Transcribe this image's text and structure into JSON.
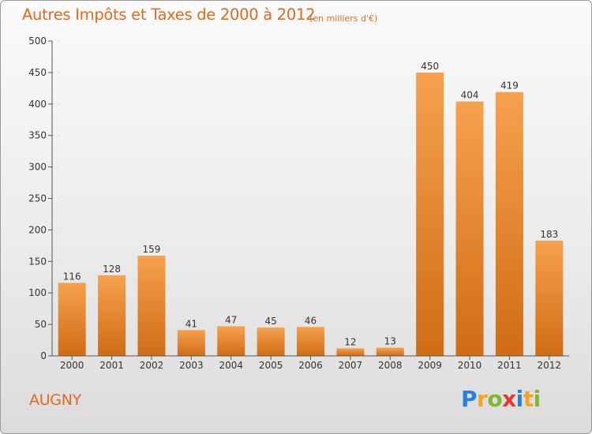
{
  "header": {
    "title": "Autres Impôts et Taxes de 2000 à 2012",
    "unit": "(en milliers d'€)"
  },
  "footer": {
    "location": "AUGNY",
    "logo_text": "Proxiti"
  },
  "colors": {
    "accent": "#e06a1e",
    "bar_top": "#f6a14e",
    "bar_bottom": "#d06c16",
    "axis": "#555555",
    "grid": "#dddddd"
  },
  "chart_data": {
    "type": "bar",
    "categories": [
      "2000",
      "2001",
      "2002",
      "2003",
      "2004",
      "2005",
      "2006",
      "2007",
      "2008",
      "2009",
      "2010",
      "2011",
      "2012"
    ],
    "values": [
      116,
      128,
      159,
      41,
      47,
      45,
      46,
      12,
      13,
      450,
      404,
      419,
      183
    ],
    "data_labels": [
      "116",
      "128",
      "159",
      "41",
      "47",
      "45",
      "46",
      "12",
      "13",
      "450",
      "404",
      "419",
      "183"
    ],
    "ylim": [
      0,
      500
    ],
    "yticks": [
      0,
      50,
      100,
      150,
      200,
      250,
      300,
      350,
      400,
      450,
      500
    ],
    "grid": "dashed horizontal, short",
    "legend": "none"
  }
}
